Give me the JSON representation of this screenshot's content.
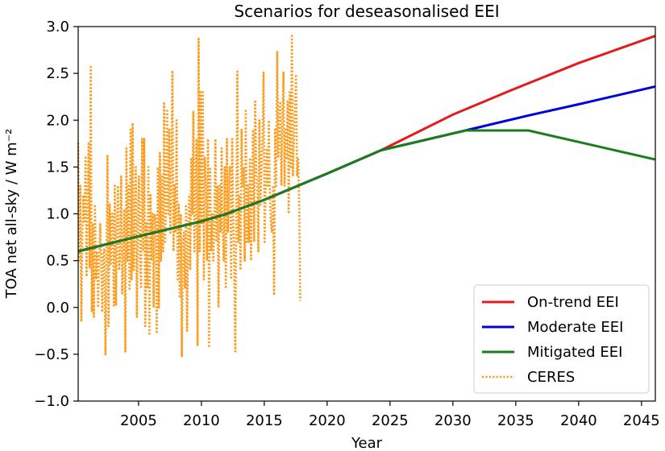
{
  "chart_data": {
    "type": "line",
    "title": "Scenarios for deseasonalised EEI",
    "xlabel": "Year",
    "ylabel": "TOA net all-sky / W m⁻²",
    "xlim": [
      2000.2,
      2046.1
    ],
    "ylim": [
      -1.0,
      3.0
    ],
    "xticks": [
      2005,
      2010,
      2015,
      2020,
      2025,
      2030,
      2035,
      2040,
      2045
    ],
    "yticks": [
      -1.0,
      -0.5,
      0.0,
      0.5,
      1.0,
      1.5,
      2.0,
      2.5,
      3.0
    ],
    "ytick_labels": [
      "−1.0",
      "−0.5",
      "0.0",
      "0.5",
      "1.0",
      "1.5",
      "2.0",
      "2.5",
      "3.0"
    ],
    "legend_position": "lower-right",
    "series": [
      {
        "name": "On-trend EEI",
        "color": "#e41a1c",
        "style": "solid",
        "x": [
          2000.2,
          2005,
          2010,
          2012,
          2015,
          2020,
          2024.3,
          2030,
          2035,
          2040,
          2046.1
        ],
        "y": [
          0.6,
          0.76,
          0.92,
          1.0,
          1.15,
          1.43,
          1.68,
          2.06,
          2.34,
          2.61,
          2.9
        ]
      },
      {
        "name": "Moderate EEI",
        "color": "#0000dd",
        "style": "solid",
        "x": [
          2000.2,
          2005,
          2010,
          2012,
          2015,
          2020,
          2024.3,
          2031,
          2036,
          2040,
          2046.1
        ],
        "y": [
          0.6,
          0.76,
          0.92,
          1.0,
          1.15,
          1.43,
          1.68,
          1.89,
          2.05,
          2.17,
          2.36
        ]
      },
      {
        "name": "Mitigated EEI",
        "color": "#1a7f1a",
        "style": "solid",
        "x": [
          2000.2,
          2005,
          2010,
          2012,
          2015,
          2020,
          2024.3,
          2031,
          2036,
          2046.1
        ],
        "y": [
          0.6,
          0.76,
          0.92,
          1.0,
          1.15,
          1.43,
          1.68,
          1.89,
          1.89,
          1.58
        ]
      },
      {
        "name": "CERES",
        "color": "#ff9a1a",
        "style": "dotted",
        "x_start": 2000.2,
        "x_step": 0.0833,
        "y": [
          1.76,
          0.5,
          1.3,
          -0.14,
          0.8,
          1.2,
          0.9,
          1.6,
          0.33,
          1.1,
          1.75,
          0.42,
          2.57,
          -0.05,
          0.9,
          -0.1,
          1.1,
          0.3,
          0.6,
          0.0,
          0.5,
          0.9,
          0.5,
          -0.05,
          0.6,
          0.62,
          -0.5,
          0.4,
          1.62,
          -0.2,
          1.1,
          0.45,
          1.0,
          1.0,
          0.02,
          1.3,
          0.02,
          0.8,
          1.3,
          0.4,
          0.55,
          1.4,
          0.15,
          0.6,
          1.05,
          -0.47,
          1.7,
          0.5,
          1.3,
          0.2,
          1.9,
          0.3,
          1.97,
          0.4,
          1.0,
          1.5,
          -0.1,
          1.0,
          1.4,
          0.5,
          0.2,
          1.8,
          0.6,
          1.8,
          -0.2,
          0.9,
          0.2,
          1.5,
          -0.28,
          1.2,
          0.5,
          1.0,
          0.0,
          1.0,
          0.9,
          -0.28,
          1.5,
          0.0,
          1.65,
          0.5,
          1.4,
          0.6,
          2.18,
          0.7,
          1.2,
          2.1,
          1.0,
          1.9,
          0.8,
          1.4,
          2.53,
          0.6,
          1.3,
          0.8,
          2.0,
          0.3,
          1.1,
          0.1,
          1.0,
          -0.53,
          0.7,
          0.8,
          0.2,
          1.1,
          -0.25,
          0.8,
          1.2,
          0.4,
          1.6,
          1.0,
          2.1,
          0.6,
          1.3,
          1.8,
          -0.4,
          2.87,
          0.6,
          2.3,
          0.9,
          2.3,
          0.3,
          1.6,
          1.3,
          0.5,
          1.8,
          -0.43,
          1.5,
          0.6,
          1.0,
          0.5,
          0.9,
          1.8,
          0.7,
          1.3,
          0.0,
          1.3,
          0.8,
          1.7,
          0.8,
          0.5,
          1.5,
          0.2,
          1.8,
          0.8,
          1.4,
          1.5,
          0.3,
          1.8,
          1.0,
          0.4,
          -0.47,
          1.1,
          2.52,
          0.7,
          1.2,
          0.4,
          1.9,
          1.3,
          1.5,
          0.5,
          2.1,
          0.7,
          1.3,
          0.7,
          1.6,
          0.5,
          1.3,
          1.9,
          0.7,
          2.2,
          1.5,
          1.3,
          0.6,
          2.0,
          1.1,
          1.5,
          1.8,
          2.51,
          0.7,
          1.3,
          1.7,
          1.3,
          2.0,
          1.2,
          0.9,
          0.8,
          1.3,
          0.13,
          1.9,
          1.3,
          2.73,
          1.6,
          2.1,
          2.2,
          1.3,
          2.0,
          2.51,
          1.3,
          1.9,
          1.6,
          2.2,
          1.0,
          2.3,
          1.5,
          2.9,
          1.4,
          1.8,
          2.2,
          2.49,
          1.4,
          1.6,
          1.1,
          0.07
        ]
      }
    ]
  }
}
